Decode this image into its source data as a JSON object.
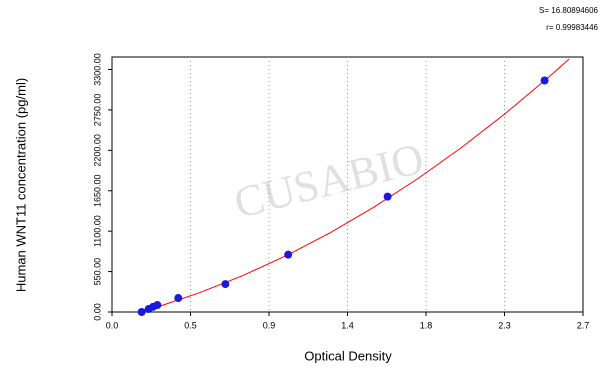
{
  "chart_data": {
    "type": "scatter",
    "x_label": "Optical Density",
    "y_label": "Human WNT11 concentration (pg/ml)",
    "annotations": [
      "S= 16.80894606",
      "r= 0.99983446"
    ],
    "watermark": "CUSABIO",
    "xlim": [
      0,
      2.7
    ],
    "ylim": [
      0,
      3470
    ],
    "xticks": [
      {
        "value": 0,
        "label": "0.0"
      },
      {
        "value": 0.45,
        "label": "0.5"
      },
      0.9,
      {
        "value": 1.35,
        "label": "1.4"
      },
      1.8,
      {
        "value": 2.25,
        "label": "2.3"
      },
      2.7
    ],
    "yticks": [
      {
        "value": 0,
        "label": "0.00"
      },
      {
        "value": 550,
        "label": "550.00"
      },
      {
        "value": 1100,
        "label": "1100.00"
      },
      {
        "value": 1650,
        "label": "1650.00"
      },
      {
        "value": 2200,
        "label": "2200.00"
      },
      {
        "value": 2750,
        "label": "2750.00"
      },
      {
        "value": 3300,
        "label": "3300.00"
      }
    ],
    "grid": true,
    "series": [
      {
        "kind": "points",
        "color": "#1a1adb",
        "x": [
          0.17,
          0.21,
          0.235,
          0.26,
          0.38,
          0.65,
          1.01,
          1.58,
          2.48
        ],
        "values": [
          0,
          40,
          70,
          95,
          190,
          380,
          780,
          1570,
          3150
        ]
      },
      {
        "kind": "curve",
        "color": "#ff0000",
        "x": [
          0.17,
          0.3,
          0.5,
          0.75,
          1.0,
          1.25,
          1.5,
          1.75,
          2.0,
          2.25,
          2.5,
          2.62
        ],
        "values": [
          0,
          100,
          261,
          496,
          768,
          1078,
          1425,
          1810,
          2232,
          2692,
          3189,
          3441
        ]
      }
    ]
  }
}
